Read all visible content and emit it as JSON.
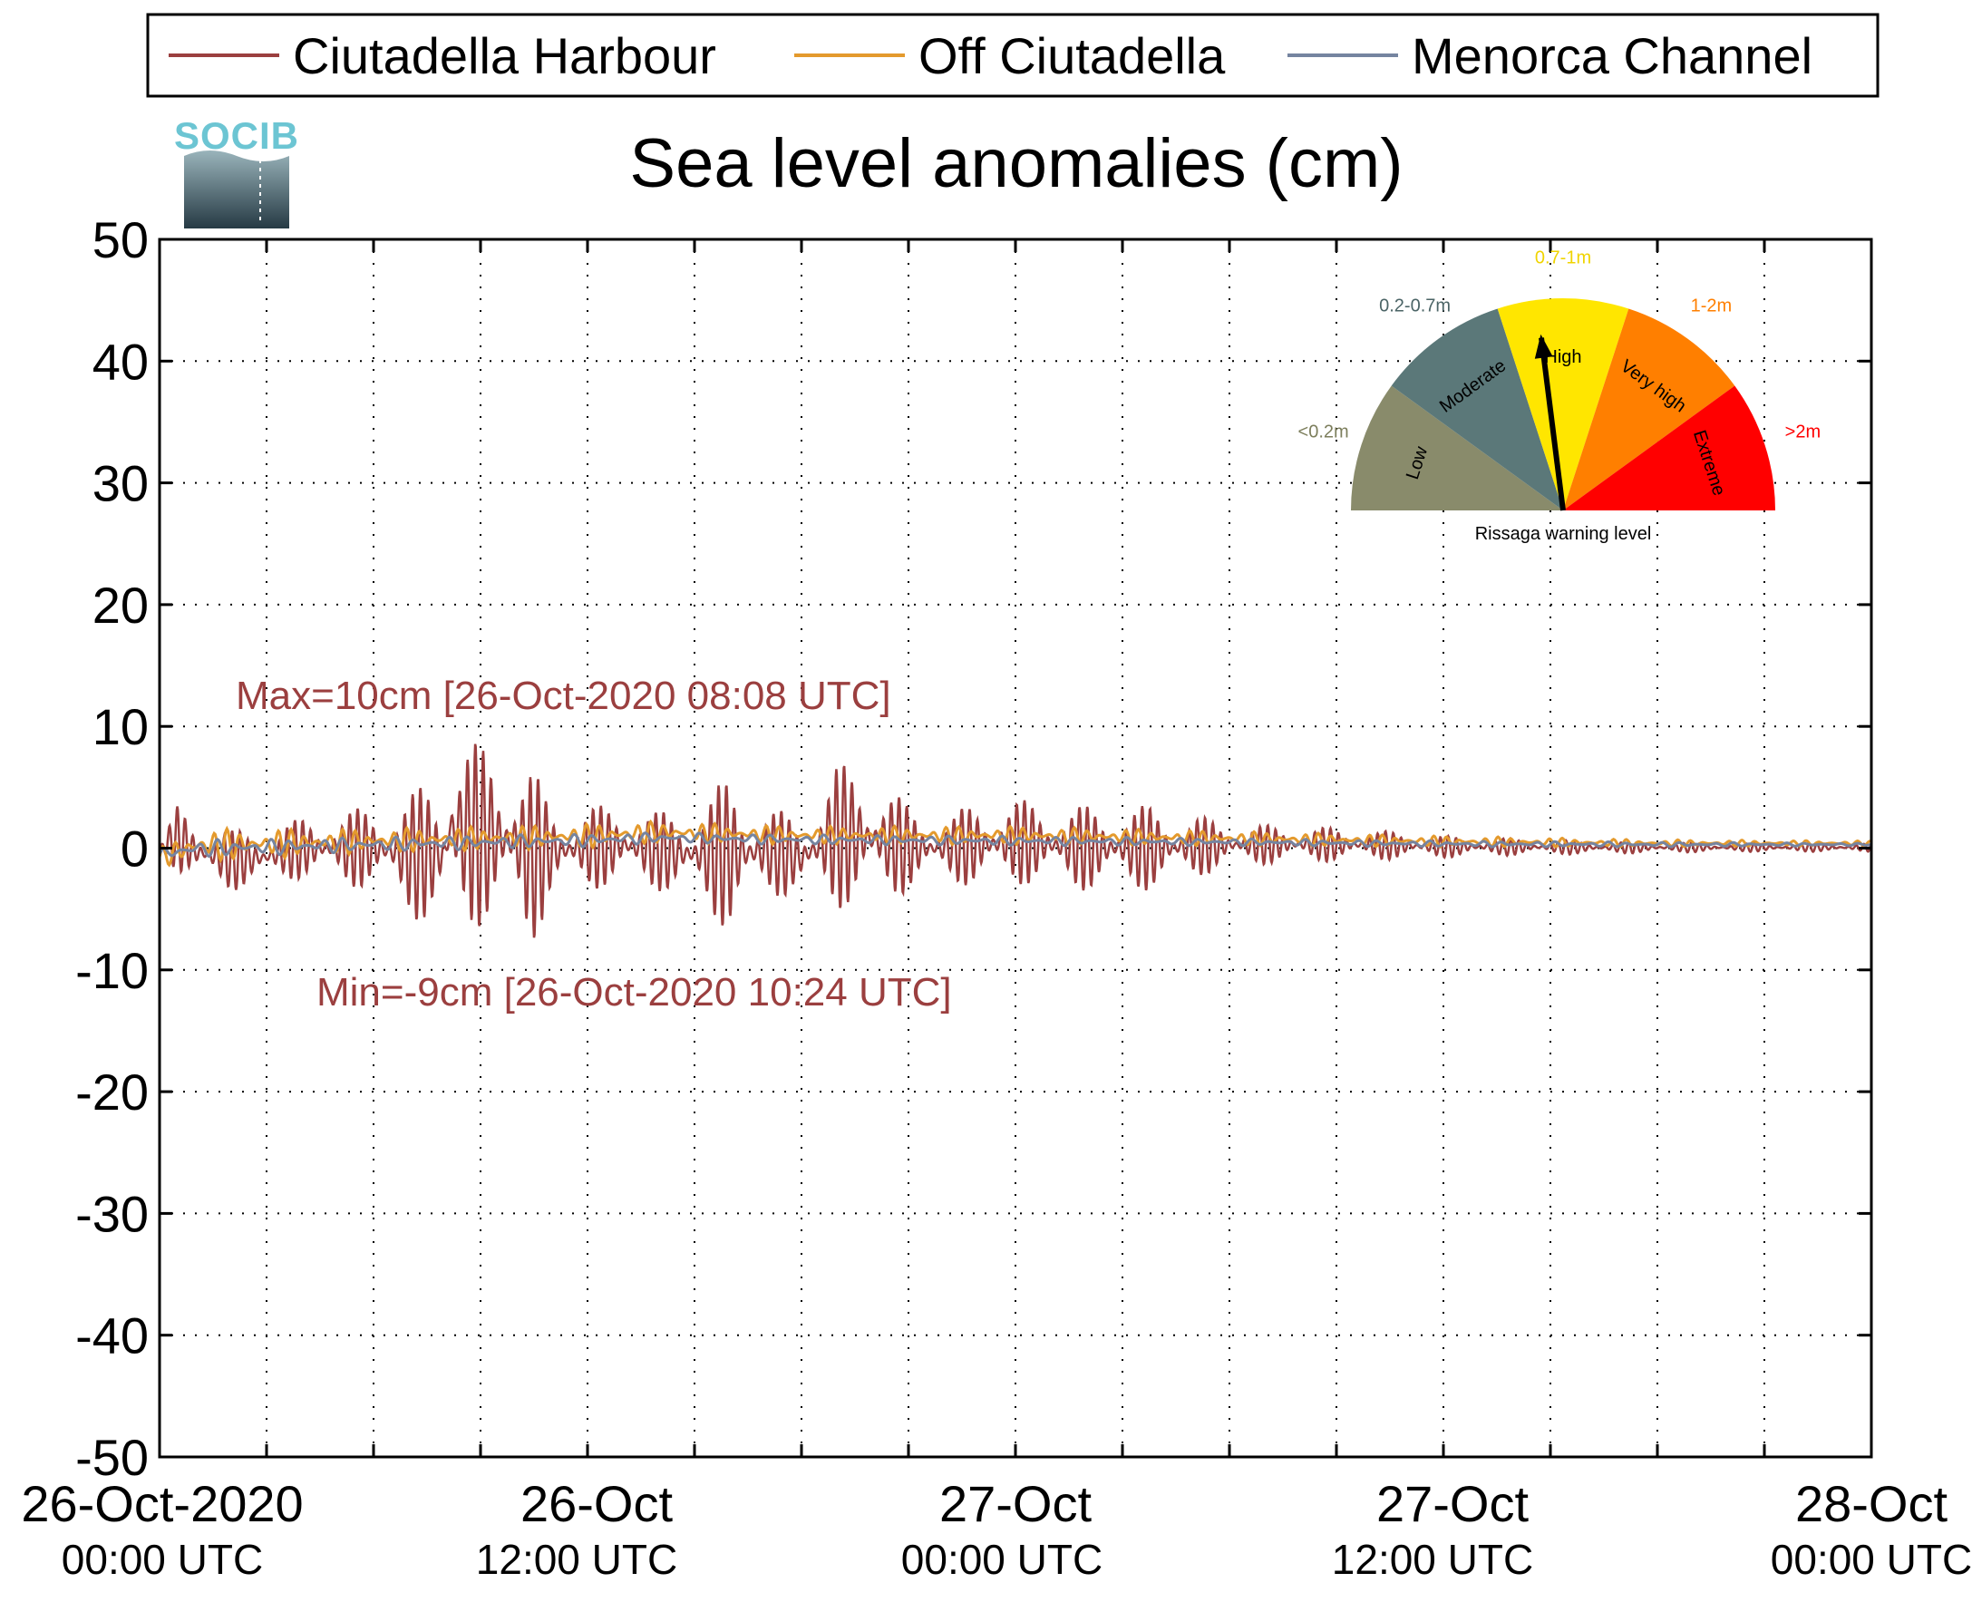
{
  "chart_data": {
    "type": "line",
    "title": "Sea level anomalies (cm)",
    "ylim": [
      -50,
      50
    ],
    "yticks": [
      -50,
      -40,
      -30,
      -20,
      -10,
      0,
      10,
      20,
      30,
      40,
      50
    ],
    "xlim": [
      "2020-10-26 00:00",
      "2020-10-28 00:00"
    ],
    "x_gridlines_hours": [
      0,
      6,
      12,
      18,
      24,
      30,
      36,
      42,
      48,
      54,
      60,
      66,
      72,
      78,
      84,
      90,
      96
    ],
    "x_tick_labels": [
      {
        "at": "2020-10-26 00:00",
        "line1": "26-Oct-2020",
        "line2": "00:00 UTC"
      },
      {
        "at": "2020-10-26 12:00",
        "line1": "26-Oct",
        "line2": "12:00 UTC"
      },
      {
        "at": "2020-10-27 00:00",
        "line1": "27-Oct",
        "line2": "00:00 UTC"
      },
      {
        "at": "2020-10-27 12:00",
        "line1": "27-Oct",
        "line2": "12:00 UTC"
      },
      {
        "at": "2020-10-28 00:00",
        "line1": "28-Oct",
        "line2": "00:00 UTC"
      }
    ],
    "grid": true,
    "legend_position": "top",
    "series": [
      {
        "name": "Ciutadella Harbour",
        "color": "#9b3f3f",
        "envelope_x_hours": [
          0,
          0.5,
          1,
          2,
          3,
          4,
          5,
          6,
          7,
          8,
          8.13,
          9,
          10,
          10.4,
          11,
          12,
          13,
          14,
          15,
          16,
          17,
          18,
          19,
          20,
          21,
          22,
          23,
          24,
          26,
          28,
          30,
          32,
          34,
          36,
          38,
          40,
          42,
          44,
          46,
          48
        ],
        "upper": [
          0,
          3.5,
          2.5,
          1.5,
          1.5,
          2.5,
          3,
          3.5,
          4.5,
          6.5,
          10,
          8.5,
          8.5,
          7,
          3.5,
          3.5,
          3.5,
          3,
          3.5,
          6,
          3.5,
          2.5,
          7,
          6.5,
          3.5,
          2.5,
          4,
          4,
          3.5,
          3.5,
          2,
          1.8,
          1.5,
          1,
          0.8,
          0.6,
          0.5,
          0.4,
          0.4,
          0.4
        ],
        "lower": [
          0,
          -2,
          -3,
          -3.5,
          -3,
          -2.5,
          -3,
          -3.5,
          -5.5,
          -7.5,
          -7,
          -6.5,
          -7.5,
          -8.5,
          -4,
          -3.5,
          -3,
          -3.5,
          -4.5,
          -7,
          -4,
          -4,
          -5,
          -5,
          -3.5,
          -2.5,
          -3.5,
          -3,
          -3.5,
          -3.5,
          -1.5,
          -1.2,
          -1,
          -0.8,
          -0.6,
          -0.5,
          -0.4,
          -0.3,
          -0.3,
          -0.3
        ]
      },
      {
        "name": "Off Ciutadella",
        "color": "#e49a2d",
        "envelope_x_hours": [
          0,
          1,
          6,
          12,
          14,
          18,
          24,
          30,
          36,
          42,
          48
        ],
        "upper": [
          0,
          1.6,
          1.6,
          2.0,
          2.2,
          1.8,
          1.8,
          1.4,
          1.0,
          0.7,
          0.6
        ],
        "lower": [
          -1.5,
          -1.2,
          -0.4,
          0.0,
          0.4,
          0.3,
          0.3,
          0.2,
          0.1,
          0.1,
          0.2
        ]
      },
      {
        "name": "Menorca Channel",
        "color": "#7584a0",
        "envelope_x_hours": [
          0,
          1,
          6,
          12,
          14,
          18,
          24,
          30,
          36,
          42,
          48
        ],
        "upper": [
          0,
          0.7,
          0.9,
          1.2,
          1.3,
          1.1,
          1.0,
          0.8,
          0.6,
          0.5,
          0.4
        ],
        "lower": [
          -1.0,
          -0.8,
          -0.3,
          0.1,
          0.4,
          0.3,
          0.2,
          0.2,
          0.1,
          0.1,
          0.2
        ]
      }
    ],
    "annotations": [
      {
        "text": "Max=10cm [26-Oct-2020 08:08 UTC]",
        "color": "#9b3f3f"
      },
      {
        "text": "Min=-9cm [26-Oct-2020 10:24 UTC]",
        "color": "#9b3f3f"
      }
    ],
    "colors": {
      "axis": "#000000",
      "grid": "#000000"
    }
  },
  "logo": {
    "text": "SOCIB",
    "color": "#6cc5d3"
  },
  "gauge": {
    "title": "Rissaga warning level",
    "level": "Low",
    "needle_fraction": 0.13,
    "segments": [
      {
        "label": "Low",
        "range": "<0.2m",
        "color": "#898b6b",
        "range_color": "#7c7e5c"
      },
      {
        "label": "Moderate",
        "range": "0.2-0.7m",
        "color": "#5b7879",
        "range_color": "#4b6466"
      },
      {
        "label": "High",
        "range": "0.7-1m",
        "color": "#ffe600",
        "range_color": "#f0d400"
      },
      {
        "label": "Very high",
        "range": "1-2m",
        "color": "#ff7f00",
        "range_color": "#ff7f00"
      },
      {
        "label": "Extreme",
        "range": ">2m",
        "color": "#ff0000",
        "range_color": "#ff0000"
      }
    ]
  }
}
